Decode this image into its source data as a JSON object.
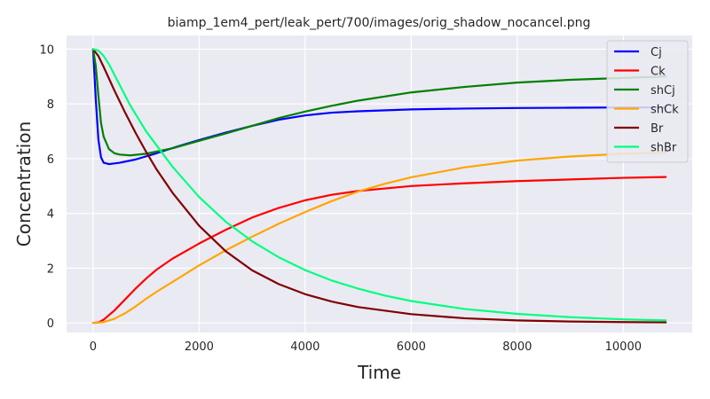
{
  "chart_data": {
    "type": "line",
    "title": "biamp_1em4_pert/leak_pert/700/images/orig_shadow_nocancel.png",
    "xlabel": "Time",
    "ylabel": "Concentration",
    "xlim": [
      -500,
      11300
    ],
    "ylim": [
      -0.35,
      10.5
    ],
    "xticks": [
      0,
      2000,
      4000,
      6000,
      8000,
      10000
    ],
    "yticks": [
      0,
      2,
      4,
      6,
      8,
      10
    ],
    "grid": true,
    "legend_position": "top-right",
    "series": [
      {
        "name": "Cj",
        "color": "#0000ff",
        "x": [
          0,
          50,
          100,
          150,
          200,
          300,
          500,
          800,
          1200,
          1600,
          2000,
          2500,
          3000,
          3500,
          4000,
          4500,
          5000,
          6000,
          7000,
          8000,
          9000,
          10000,
          10800
        ],
        "y": [
          10,
          8.2,
          6.7,
          6.05,
          5.85,
          5.8,
          5.85,
          5.97,
          6.2,
          6.45,
          6.68,
          6.95,
          7.2,
          7.42,
          7.58,
          7.68,
          7.73,
          7.8,
          7.83,
          7.85,
          7.86,
          7.87,
          7.87
        ]
      },
      {
        "name": "Ck",
        "color": "#ff0000",
        "x": [
          0,
          100,
          200,
          400,
          600,
          800,
          1000,
          1200,
          1500,
          2000,
          2500,
          3000,
          3500,
          4000,
          4500,
          5000,
          6000,
          7000,
          8000,
          9000,
          10000,
          10800
        ],
        "y": [
          0,
          0.02,
          0.12,
          0.45,
          0.85,
          1.25,
          1.62,
          1.95,
          2.35,
          2.9,
          3.4,
          3.85,
          4.2,
          4.48,
          4.68,
          4.82,
          5.0,
          5.1,
          5.18,
          5.24,
          5.3,
          5.33
        ]
      },
      {
        "name": "shCj",
        "color": "#008000",
        "x": [
          0,
          50,
          100,
          150,
          200,
          300,
          400,
          500,
          700,
          1000,
          1500,
          2000,
          2500,
          3000,
          3500,
          4000,
          4500,
          5000,
          6000,
          7000,
          8000,
          9000,
          10000,
          10800
        ],
        "y": [
          10,
          9.4,
          8.3,
          7.3,
          6.8,
          6.35,
          6.2,
          6.15,
          6.12,
          6.18,
          6.38,
          6.65,
          6.92,
          7.2,
          7.48,
          7.72,
          7.93,
          8.12,
          8.42,
          8.62,
          8.78,
          8.88,
          8.95,
          9.0
        ]
      },
      {
        "name": "shCk",
        "color": "#ffa500",
        "x": [
          0,
          200,
          400,
          600,
          800,
          1000,
          1200,
          1500,
          2000,
          2500,
          3000,
          3500,
          4000,
          4500,
          5000,
          5500,
          6000,
          7000,
          8000,
          9000,
          10000,
          10800
        ],
        "y": [
          0,
          0.03,
          0.15,
          0.35,
          0.6,
          0.88,
          1.14,
          1.5,
          2.1,
          2.65,
          3.15,
          3.62,
          4.05,
          4.45,
          4.8,
          5.08,
          5.32,
          5.68,
          5.93,
          6.08,
          6.18,
          6.22
        ]
      },
      {
        "name": "Br",
        "color": "#800000",
        "x": [
          0,
          100,
          200,
          400,
          600,
          800,
          1000,
          1200,
          1500,
          2000,
          2500,
          3000,
          3500,
          4000,
          4500,
          5000,
          6000,
          7000,
          8000,
          9000,
          10000,
          10800
        ],
        "y": [
          10,
          9.75,
          9.35,
          8.5,
          7.7,
          6.95,
          6.25,
          5.6,
          4.75,
          3.55,
          2.62,
          1.92,
          1.42,
          1.05,
          0.78,
          0.58,
          0.32,
          0.17,
          0.09,
          0.05,
          0.03,
          0.02
        ]
      },
      {
        "name": "shBr",
        "color": "#00ff7f",
        "x": [
          0,
          100,
          200,
          300,
          500,
          700,
          1000,
          1500,
          2000,
          2500,
          3000,
          3500,
          4000,
          4500,
          5000,
          5500,
          6000,
          7000,
          8000,
          9000,
          10000,
          10800
        ],
        "y": [
          10,
          9.95,
          9.75,
          9.45,
          8.7,
          7.95,
          7.0,
          5.7,
          4.6,
          3.7,
          2.98,
          2.4,
          1.93,
          1.55,
          1.25,
          1.0,
          0.8,
          0.51,
          0.33,
          0.21,
          0.13,
          0.09
        ]
      }
    ]
  }
}
